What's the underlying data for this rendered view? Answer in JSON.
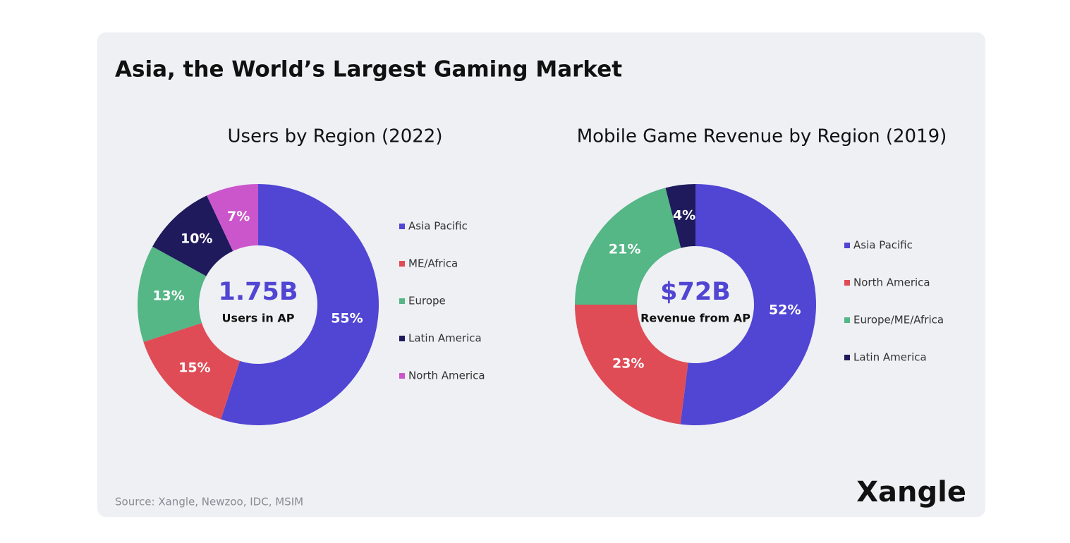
{
  "title": "Asia, the World’s Largest Gaming Market",
  "source": "Source: Xangle, Newzoo, IDC, MSIM",
  "brand": "Xangle",
  "chart_data": [
    {
      "type": "donut",
      "title": "Users by Region (2022)",
      "center_title": "1.75B",
      "center_subtitle": "Users in AP",
      "categories": [
        "Asia Pacific",
        "ME/Africa",
        "Europe",
        "Latin America",
        "North America"
      ],
      "values": [
        55,
        15,
        13,
        10,
        7
      ],
      "value_labels": [
        "55%",
        "15%",
        "13%",
        "10%",
        "7%"
      ],
      "colors": [
        "#5145d3",
        "#e04c56",
        "#55b686",
        "#1e1a5c",
        "#cb56cc"
      ]
    },
    {
      "type": "donut",
      "title": "Mobile Game Revenue by Region (2019)",
      "center_title": "$72B",
      "center_subtitle": "Revenue from AP",
      "categories": [
        "Asia Pacific",
        "North America",
        "Europe/ME/Africa",
        "Latin America"
      ],
      "values": [
        52,
        23,
        21,
        4
      ],
      "value_labels": [
        "52%",
        "23%",
        "21%",
        "4%"
      ],
      "colors": [
        "#5145d3",
        "#e04c56",
        "#55b686",
        "#1e1a5c"
      ]
    }
  ]
}
